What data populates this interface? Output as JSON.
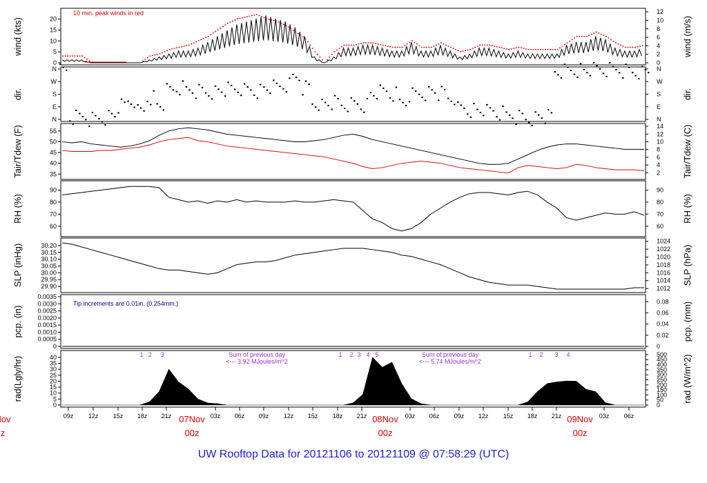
{
  "title": "UW Rooftop Data for 20121106  to  20121109 @ 07:58:29  (UTC)",
  "colors": {
    "line": "#000000",
    "red": "#e00000",
    "blue": "#00008b",
    "purple": "#9b2fc9",
    "title": "#2020d0"
  },
  "x_ticks": [
    "09z",
    "12z",
    "15z",
    "18z",
    "21z",
    "03z",
    "06z",
    "09z",
    "12z",
    "15z",
    "18z",
    "21z",
    "03z",
    "06z",
    "09z",
    "12z",
    "15z",
    "18z",
    "21z",
    "03z",
    "06z"
  ],
  "day_labels": [
    {
      "date": "Nov",
      "hour": "z"
    },
    {
      "date": "07Nov",
      "hour": "00z"
    },
    {
      "date": "08Nov",
      "hour": "00z"
    },
    {
      "date": "09Nov",
      "hour": "00z"
    }
  ],
  "chart_data": [
    {
      "type": "line",
      "id": "wind",
      "ylabel_left": "wind (kts)",
      "ylabel_right": "wind (m/s)",
      "ylim": [
        0,
        24
      ],
      "yticks_left": [
        "0",
        "5",
        "10",
        "15",
        "20"
      ],
      "ylim_right": [
        0,
        12.35
      ],
      "yticks_right": [
        "0",
        "2",
        "4",
        "6",
        "8",
        "10",
        "12"
      ],
      "annotation": "10 min. peak winds in red",
      "series": [
        {
          "name": "wind",
          "color": "#000000",
          "values": [
            1,
            1,
            1,
            0,
            0,
            0,
            0,
            0,
            0,
            1,
            2,
            3,
            4,
            4,
            5,
            7,
            9,
            11,
            13,
            14,
            15,
            16,
            15,
            14,
            12,
            9,
            2,
            0,
            2,
            5,
            5,
            6,
            6,
            5,
            4,
            4,
            7,
            4,
            4,
            6,
            4,
            2,
            3,
            5,
            5,
            4,
            3,
            4,
            3,
            3,
            3,
            3,
            6,
            7,
            7,
            9,
            8,
            5,
            4,
            4,
            5
          ]
        },
        {
          "name": "peak",
          "color": "#e00000",
          "values": [
            3,
            3,
            3,
            0,
            0,
            0,
            0,
            0,
            0,
            3,
            4,
            6,
            7,
            8,
            10,
            12,
            15,
            18,
            20,
            21,
            22,
            20,
            19,
            17,
            14,
            11,
            5,
            0,
            5,
            8,
            8,
            9,
            9,
            8,
            7,
            7,
            10,
            7,
            7,
            9,
            7,
            5,
            6,
            8,
            8,
            7,
            6,
            7,
            6,
            6,
            6,
            6,
            9,
            12,
            12,
            14,
            12,
            9,
            7,
            7,
            8
          ]
        }
      ]
    },
    {
      "type": "scatter",
      "id": "dir",
      "ylabel_left": "dir.",
      "ylabel_right": "dir.",
      "yticks_left": [
        "N",
        "E",
        "S",
        "W",
        "N"
      ],
      "yticks_right": [
        "N",
        "E",
        "S",
        "W",
        "N"
      ],
      "ylim": [
        0,
        360
      ],
      "series": [
        {
          "name": "direction",
          "color": "#000000",
          "values": [
            340,
            10,
            20,
            5,
            15,
            30,
            90,
            130,
            60,
            160,
            100,
            200,
            220,
            210,
            205,
            200,
            205,
            210,
            215,
            210,
            205,
            220,
            225,
            240,
            300,
            230,
            120,
            110,
            115,
            100,
            110,
            105,
            180,
            190,
            175,
            120,
            180,
            190,
            200,
            180,
            150,
            80,
            70,
            60,
            50,
            40,
            30,
            20,
            10,
            20,
            15,
            340,
            350,
            355,
            345,
            350,
            350,
            355,
            350,
            345,
            345
          ]
        }
      ]
    },
    {
      "type": "line",
      "id": "temp",
      "ylabel_left": "Tair/Tdew (F)",
      "ylabel_right": "Tair/Tdew (C)",
      "ylim": [
        33.5,
        57.5
      ],
      "yticks_left": [
        "35",
        "40",
        "45",
        "50",
        "55"
      ],
      "ylim_right": [
        0.8,
        14.2
      ],
      "yticks_right": [
        "2",
        "4",
        "6",
        "8",
        "10",
        "12",
        "14"
      ],
      "series": [
        {
          "name": "Tair",
          "color": "#000000",
          "values": [
            50,
            49.5,
            50,
            49,
            48.5,
            48,
            47.5,
            48,
            49,
            50.5,
            53,
            55,
            56,
            56.5,
            56,
            55.5,
            54.5,
            53.5,
            53,
            52.5,
            52,
            51.5,
            51,
            50.5,
            50,
            50,
            50.5,
            51,
            52,
            53,
            53.5,
            52.5,
            51,
            50,
            49,
            48,
            47,
            46,
            45,
            44,
            43,
            42,
            41,
            40,
            39.5,
            39.5,
            40,
            42,
            44,
            46,
            47.5,
            48.5,
            49,
            49,
            48.5,
            48,
            47.5,
            47,
            46.5,
            46.5,
            46.5
          ]
        },
        {
          "name": "Tdew",
          "color": "#e00000",
          "values": [
            46,
            45.5,
            45.5,
            45.5,
            46,
            46,
            46.5,
            47,
            47.5,
            48.5,
            50,
            51,
            51.5,
            52,
            50.5,
            50,
            49,
            48,
            47.5,
            47,
            46.5,
            46,
            45.5,
            45,
            44.5,
            44,
            43.5,
            43,
            42,
            41,
            40,
            38.5,
            37.5,
            38,
            39,
            40,
            40.5,
            41,
            40.5,
            40,
            39,
            38,
            37.5,
            37,
            36.5,
            36,
            35.5,
            38,
            39,
            38.5,
            38,
            37.5,
            38,
            39.5,
            39,
            38,
            37.5,
            37,
            37,
            37,
            36.5
          ]
        }
      ]
    },
    {
      "type": "line",
      "id": "rh",
      "ylabel_left": "RH (%)",
      "ylabel_right": "RH (%)",
      "ylim": [
        53,
        96
      ],
      "yticks_left": [
        "60",
        "70",
        "80",
        "90"
      ],
      "yticks_right": [
        "60",
        "70",
        "80",
        "90"
      ],
      "series": [
        {
          "name": "RH",
          "color": "#000000",
          "values": [
            86,
            87,
            88,
            89,
            90,
            91,
            92,
            93,
            93,
            93,
            92,
            84,
            82,
            80,
            81,
            79,
            81,
            80,
            82,
            80,
            81,
            80,
            80,
            80,
            81,
            80,
            80,
            81,
            82,
            81,
            80,
            73,
            66,
            63,
            58,
            56,
            58,
            63,
            70,
            75,
            80,
            84,
            87,
            88,
            88,
            87,
            86,
            88,
            89,
            86,
            80,
            75,
            67,
            65,
            67,
            69,
            71,
            70,
            70,
            72,
            69
          ]
        }
      ]
    },
    {
      "type": "line",
      "id": "slp",
      "ylabel_left": "SLP (inHg)",
      "ylabel_right": "SLP (hPa)",
      "ylim": [
        29.87,
        30.24
      ],
      "yticks_left": [
        "29.90",
        "29.95",
        "30.00",
        "30.05",
        "30.10",
        "30.15",
        "30.20"
      ],
      "ylim_right": [
        1011.5,
        1024.3
      ],
      "yticks_right": [
        "1012",
        "1014",
        "1016",
        "1018",
        "1020",
        "1022",
        "1024"
      ],
      "series": [
        {
          "name": "SLP",
          "color": "#000000",
          "values": [
            30.22,
            30.21,
            30.19,
            30.17,
            30.15,
            30.13,
            30.11,
            30.09,
            30.07,
            30.05,
            30.03,
            30.02,
            30.02,
            30.01,
            30.0,
            29.99,
            30.0,
            30.03,
            30.06,
            30.07,
            30.08,
            30.08,
            30.09,
            30.11,
            30.13,
            30.14,
            30.15,
            30.16,
            30.17,
            30.18,
            30.18,
            30.18,
            30.17,
            30.16,
            30.15,
            30.13,
            30.12,
            30.1,
            30.08,
            30.06,
            30.03,
            30.0,
            29.97,
            29.95,
            29.93,
            29.92,
            29.91,
            29.91,
            29.91,
            29.9,
            29.89,
            29.88,
            29.88,
            29.88,
            29.88,
            29.88,
            29.88,
            29.88,
            29.88,
            29.89,
            29.89
          ]
        }
      ]
    },
    {
      "type": "line",
      "id": "pcp",
      "ylabel_left": "pcp. (in)",
      "ylabel_right": "pcp. (mm)",
      "ylim": [
        0,
        0.0035
      ],
      "yticks_left": [
        "0",
        "0.0005",
        "0.0010",
        "0.0015",
        "0.0020",
        "0.0025",
        "0.0030",
        "0.0035"
      ],
      "ylim_right": [
        0,
        0.089
      ],
      "yticks_right": [
        "0",
        "0.02",
        "0.04",
        "0.06",
        "0.08"
      ],
      "annotation": "Tip increments are 0.01in. (0.254mm.)",
      "series": [
        {
          "name": "pcp",
          "color": "#000000",
          "values": [
            0,
            0,
            0,
            0,
            0,
            0,
            0,
            0,
            0,
            0,
            0,
            0,
            0,
            0,
            0,
            0,
            0,
            0,
            0,
            0,
            0,
            0,
            0,
            0,
            0,
            0,
            0,
            0,
            0,
            0,
            0,
            0,
            0,
            0,
            0,
            0,
            0,
            0,
            0,
            0,
            0,
            0,
            0,
            0,
            0,
            0,
            0,
            0,
            0,
            0,
            0,
            0,
            0,
            0,
            0,
            0,
            0,
            0,
            0,
            0,
            0
          ]
        }
      ]
    },
    {
      "type": "area",
      "id": "rad",
      "ylabel_left": "rad(Lgly/hr)",
      "ylabel_right": "rad (W/m^2)",
      "ylim": [
        0,
        44
      ],
      "yticks_left": [
        "0",
        "5",
        "10",
        "15",
        "20",
        "25",
        "30",
        "35",
        "40"
      ],
      "ylim_right": [
        0,
        520
      ],
      "yticks_right": [
        "0",
        "50",
        "100",
        "150",
        "200",
        "250",
        "300",
        "350",
        "400",
        "450",
        "500"
      ],
      "annotations": [
        {
          "text": "Sum of previous day",
          "line2": "<--- 3.92 MJoules/m^2"
        },
        {
          "text": "Sum of previous day",
          "line2": "<--- 5.74 MJoules/m^2"
        }
      ],
      "peak_labels": [
        "1",
        "2",
        "3",
        "1",
        "2",
        "3",
        "4",
        "5",
        "1",
        "2",
        "3",
        "4"
      ],
      "series": [
        {
          "name": "radiation",
          "color": "#000000",
          "values": [
            0,
            0,
            0,
            0,
            0,
            0,
            0,
            0,
            0,
            3,
            10,
            30,
            22,
            12,
            5,
            2,
            1,
            0,
            0,
            0,
            0,
            0,
            0,
            0,
            0,
            0,
            0,
            0,
            0,
            0,
            2,
            8,
            40,
            36,
            32,
            18,
            6,
            1,
            0,
            0,
            0,
            0,
            0,
            0,
            0,
            0,
            0,
            0,
            3,
            10,
            18,
            22,
            18,
            20,
            15,
            10,
            2,
            0,
            0,
            0,
            0
          ]
        }
      ]
    }
  ]
}
